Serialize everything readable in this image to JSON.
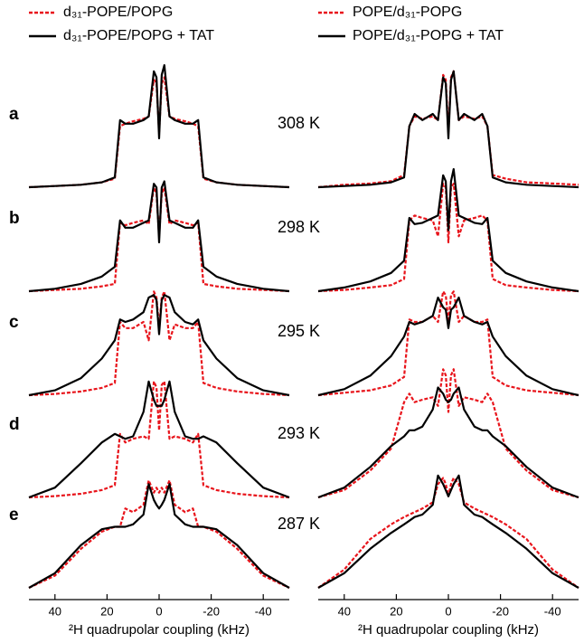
{
  "panels": [
    {
      "label": "a",
      "temperature": "308 K"
    },
    {
      "label": "b",
      "temperature": "298 K"
    },
    {
      "label": "c",
      "temperature": "295 K"
    },
    {
      "label": "d",
      "temperature": "293 K"
    },
    {
      "label": "e",
      "temperature": "287 K"
    }
  ],
  "chart_data": [
    {
      "type": "line",
      "xlabel": "²H quadrupolar coupling (kHz)",
      "xlim": [
        50,
        -50
      ],
      "xticks": [
        40,
        20,
        0,
        -20,
        -40
      ],
      "x": [
        50,
        40,
        30,
        22,
        17,
        15,
        13,
        10,
        6,
        4,
        2,
        1,
        0,
        -1,
        -2,
        -4,
        -6,
        -10,
        -13,
        -15,
        -17,
        -22,
        -30,
        -40,
        -50
      ],
      "series": [
        {
          "name": "d₃₁-POPE/POPG",
          "color": "#e8141b",
          "dashed": true,
          "values": [
            [
              0,
              1,
              2,
              4,
              7,
              50,
              52,
              54,
              56,
              58,
              88,
              85,
              45,
              85,
              90,
              58,
              56,
              54,
              52,
              50,
              7,
              4,
              2,
              1,
              0
            ],
            [
              0,
              1,
              2,
              4,
              6,
              56,
              54,
              56,
              58,
              55,
              85,
              80,
              45,
              80,
              85,
              55,
              58,
              56,
              54,
              56,
              6,
              4,
              2,
              1,
              0
            ],
            [
              0,
              1,
              3,
              6,
              10,
              60,
              55,
              55,
              60,
              45,
              85,
              80,
              55,
              80,
              85,
              45,
              58,
              55,
              55,
              60,
              10,
              6,
              3,
              1,
              0
            ],
            [
              0,
              1,
              3,
              6,
              10,
              52,
              45,
              48,
              50,
              48,
              95,
              90,
              55,
              92,
              95,
              48,
              50,
              48,
              45,
              52,
              10,
              6,
              3,
              1,
              0
            ],
            [
              0,
              10,
              32,
              46,
              50,
              50,
              65,
              62,
              68,
              88,
              78,
              82,
              78,
              82,
              78,
              88,
              68,
              62,
              65,
              50,
              50,
              46,
              32,
              10,
              0
            ]
          ]
        },
        {
          "name": "d₃₁-POPE/POPG + TAT",
          "color": "#000000",
          "dashed": false,
          "values": [
            [
              0,
              1,
              2,
              4,
              8,
              55,
              52,
              52,
              55,
              58,
              95,
              90,
              40,
              92,
              100,
              58,
              55,
              52,
              52,
              55,
              8,
              4,
              2,
              1,
              0
            ],
            [
              0,
              2,
              6,
              12,
              20,
              58,
              52,
              52,
              56,
              58,
              88,
              85,
              40,
              85,
              90,
              58,
              56,
              52,
              52,
              58,
              20,
              12,
              6,
              2,
              0
            ],
            [
              0,
              4,
              14,
              30,
              45,
              62,
              60,
              62,
              68,
              80,
              82,
              78,
              50,
              78,
              82,
              80,
              68,
              60,
              58,
              62,
              45,
              30,
              14,
              4,
              0
            ],
            [
              0,
              8,
              28,
              45,
              52,
              50,
              48,
              50,
              70,
              95,
              80,
              75,
              75,
              75,
              80,
              95,
              70,
              50,
              48,
              48,
              50,
              45,
              28,
              8,
              0
            ],
            [
              0,
              12,
              35,
              48,
              50,
              50,
              50,
              52,
              60,
              85,
              72,
              68,
              65,
              68,
              72,
              85,
              60,
              52,
              50,
              50,
              50,
              48,
              35,
              12,
              0
            ]
          ]
        }
      ]
    },
    {
      "type": "line",
      "xlabel": "²H quadrupolar coupling (kHz)",
      "xlim": [
        50,
        -50
      ],
      "xticks": [
        40,
        20,
        0,
        -20,
        -40
      ],
      "x": [
        50,
        40,
        30,
        22,
        17,
        15,
        13,
        10,
        6,
        4,
        2,
        1,
        0,
        -1,
        -2,
        -4,
        -6,
        -10,
        -13,
        -15,
        -17,
        -22,
        -30,
        -40,
        -50
      ],
      "series": [
        {
          "name": "POPE/d₃₁-POPG",
          "color": "#e8141b",
          "dashed": true,
          "values": [
            [
              0,
              2,
              3,
              5,
              10,
              50,
              58,
              56,
              58,
              55,
              92,
              88,
              45,
              90,
              95,
              55,
              58,
              56,
              58,
              50,
              10,
              7,
              4,
              3,
              2
            ],
            [
              0,
              1,
              3,
              5,
              10,
              58,
              62,
              60,
              58,
              45,
              88,
              85,
              40,
              85,
              88,
              45,
              58,
              60,
              62,
              58,
              10,
              5,
              3,
              1,
              0
            ],
            [
              0,
              2,
              4,
              8,
              15,
              62,
              60,
              60,
              65,
              60,
              85,
              82,
              60,
              82,
              85,
              60,
              65,
              60,
              60,
              62,
              15,
              8,
              4,
              2,
              0
            ],
            [
              0,
              6,
              22,
              40,
              78,
              85,
              78,
              80,
              82,
              75,
              105,
              100,
              70,
              100,
              105,
              75,
              82,
              80,
              78,
              85,
              78,
              40,
              22,
              6,
              0
            ],
            [
              0,
              15,
              40,
              52,
              58,
              60,
              62,
              65,
              70,
              85,
              90,
              85,
              75,
              85,
              90,
              85,
              70,
              65,
              62,
              60,
              58,
              52,
              40,
              15,
              0
            ]
          ]
        },
        {
          "name": "POPE/d₃₁-POPG + TAT",
          "color": "#000000",
          "dashed": false,
          "values": [
            [
              0,
              1,
              2,
              4,
              8,
              50,
              60,
              55,
              60,
              55,
              90,
              85,
              40,
              88,
              95,
              55,
              60,
              55,
              60,
              50,
              8,
              4,
              2,
              1,
              0
            ],
            [
              0,
              3,
              8,
              15,
              25,
              60,
              55,
              56,
              60,
              62,
              95,
              90,
              50,
              90,
              100,
              62,
              60,
              56,
              55,
              60,
              25,
              15,
              8,
              3,
              0
            ],
            [
              0,
              5,
              16,
              32,
              48,
              60,
              58,
              60,
              65,
              80,
              72,
              70,
              55,
              70,
              72,
              80,
              65,
              60,
              58,
              60,
              48,
              32,
              16,
              5,
              0
            ],
            [
              0,
              8,
              25,
              42,
              50,
              55,
              55,
              58,
              72,
              90,
              85,
              80,
              78,
              80,
              85,
              90,
              72,
              58,
              55,
              55,
              50,
              42,
              25,
              8,
              0
            ],
            [
              0,
              12,
              32,
              45,
              52,
              55,
              58,
              60,
              68,
              92,
              85,
              80,
              75,
              80,
              85,
              92,
              68,
              60,
              58,
              55,
              52,
              45,
              32,
              12,
              0
            ]
          ]
        }
      ]
    }
  ]
}
